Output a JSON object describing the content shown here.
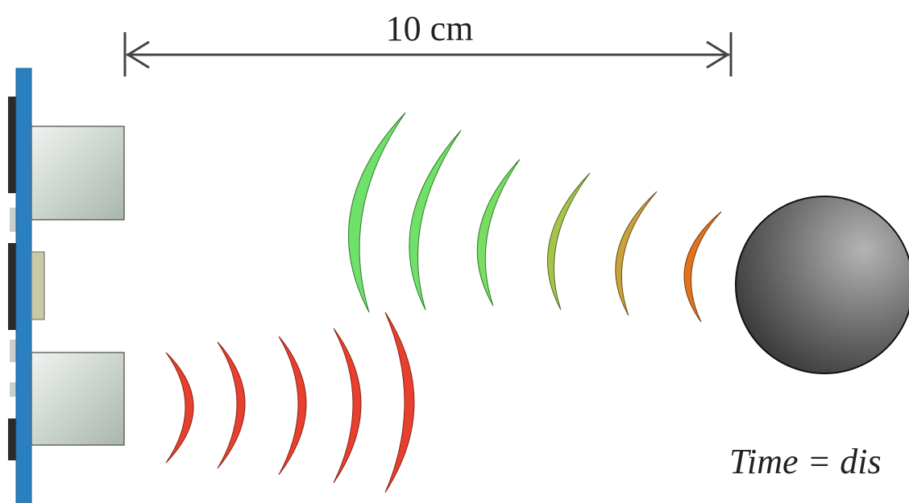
{
  "distance_label": "10 cm",
  "formula_text": "Time = dis",
  "colors": {
    "pcb_blue": "#2a7fc0",
    "transducer": "#c9d2cc",
    "emitted_wave": "#e8402e",
    "echo_waves": [
      "#6fe06a",
      "#70e06a",
      "#79dc63",
      "#a6c44a",
      "#c8a23a",
      "#e2731e"
    ],
    "object": "#6a6a6a"
  },
  "icons": {
    "sensor": "ultrasonic-sensor-icon",
    "object": "target-ball-icon"
  }
}
